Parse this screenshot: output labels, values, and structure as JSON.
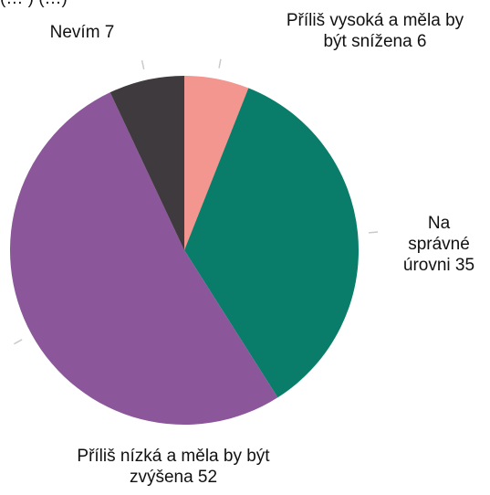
{
  "chart_data": {
    "type": "pie",
    "title": "(… ) (…)",
    "slices": [
      {
        "name": "Příliš vysoká a měla by být snížena",
        "value": 6,
        "color": "#f3968f",
        "label_lines": [
          "Příliš vysoká a měla by",
          "být snížena 6"
        ]
      },
      {
        "name": "Na správné úrovni",
        "value": 35,
        "color": "#0a7d6a",
        "label_lines": [
          "Na",
          "správné",
          "úrovni 35"
        ]
      },
      {
        "name": "Příliš nízká a měla by být zvýšena",
        "value": 52,
        "color": "#8b579a",
        "label_lines": [
          "Příliš nízká a měla by být",
          "zvýšena 52"
        ]
      },
      {
        "name": "Nevím",
        "value": 7,
        "color": "#3e3a3d",
        "label_lines": [
          "Nevím 7"
        ]
      }
    ],
    "start_angle_deg": 0,
    "direction": "clockwise"
  }
}
